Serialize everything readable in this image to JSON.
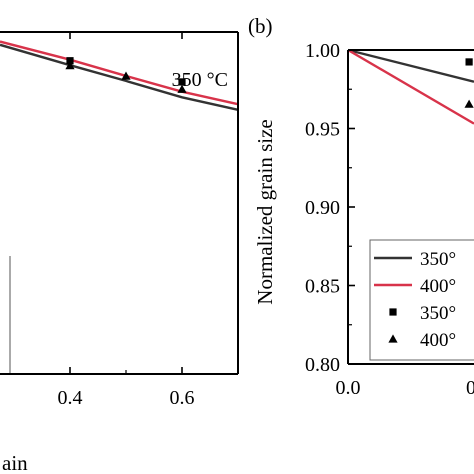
{
  "colors": {
    "black_series": "#333333",
    "red_series": "#d8334a",
    "axis": "#000000"
  },
  "chart_data": [
    {
      "type": "line",
      "panel_label": "",
      "annotation": "350 °C",
      "xlabel": "ain",
      "ylabel": "",
      "xlim": [
        0.275,
        0.7
      ],
      "ylim": [
        0.8,
        1.0
      ],
      "x_ticks": [
        0.4,
        0.6
      ],
      "x_tick_labels": [
        "0.4",
        "0.6"
      ],
      "grid": false,
      "series": [
        {
          "kind": "line",
          "color": "#333333",
          "x": [
            0.275,
            0.4,
            0.5,
            0.6,
            0.7
          ],
          "y": [
            0.9925,
            0.9806,
            0.9714,
            0.9618,
            0.9545
          ]
        },
        {
          "kind": "line",
          "color": "#d8334a",
          "x": [
            0.275,
            0.4,
            0.5,
            0.6,
            0.7
          ],
          "y": [
            0.9944,
            0.9838,
            0.9743,
            0.9651,
            0.9578
          ]
        },
        {
          "kind": "marker",
          "marker": "square",
          "color": "#000000",
          "x": [
            0.4,
            0.6
          ],
          "y": [
            0.9832,
            0.9708
          ]
        },
        {
          "kind": "marker",
          "marker": "triangle",
          "color": "#000000",
          "x": [
            0.4,
            0.5,
            0.6
          ],
          "y": [
            0.9803,
            0.9742,
            0.9665
          ]
        }
      ]
    },
    {
      "type": "line",
      "panel_label": "(b)",
      "xlabel": "",
      "ylabel": "Normalized grain size",
      "xlim": [
        0.0,
        0.09
      ],
      "ylim": [
        0.8,
        1.0
      ],
      "x_ticks": [
        0.0
      ],
      "x_tick_labels": [
        "0.0"
      ],
      "y_ticks": [
        0.8,
        0.85,
        0.9,
        0.95,
        1.0
      ],
      "y_tick_labels": [
        "0.80",
        "0.85",
        "0.90",
        "0.95",
        "1.00"
      ],
      "grid": false,
      "legend": {
        "placement": "lower-right",
        "entries": [
          {
            "label": "350°",
            "kind": "line",
            "color": "#333333"
          },
          {
            "label": "400°",
            "kind": "line",
            "color": "#d8334a"
          },
          {
            "label": "350°",
            "kind": "marker",
            "marker": "square",
            "color": "#000000"
          },
          {
            "label": "400°",
            "kind": "marker",
            "marker": "triangle",
            "color": "#000000"
          }
        ]
      },
      "series": [
        {
          "kind": "line",
          "color": "#333333",
          "x": [
            0.0,
            0.09
          ],
          "y": [
            1.0,
            0.9798
          ]
        },
        {
          "kind": "line",
          "color": "#d8334a",
          "x": [
            0.0,
            0.09
          ],
          "y": [
            1.0,
            0.9531
          ]
        },
        {
          "kind": "marker",
          "marker": "square",
          "color": "#000000",
          "x": [
            0.0865
          ],
          "y": [
            0.9924
          ]
        },
        {
          "kind": "marker",
          "marker": "triangle",
          "color": "#000000",
          "x": [
            0.0865
          ],
          "y": [
            0.9655
          ]
        }
      ]
    }
  ]
}
